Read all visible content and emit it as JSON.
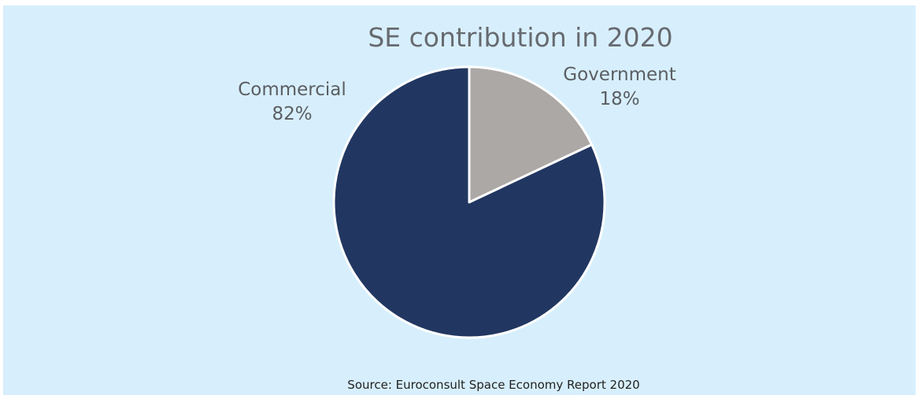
{
  "chart_data": {
    "type": "pie",
    "title": "SE contribution in 2020",
    "slices": [
      {
        "label": "Government",
        "value": 18,
        "display": "18%",
        "color": "#aba8a6"
      },
      {
        "label": "Commercial",
        "value": 82,
        "display": "82%",
        "color": "#213761"
      }
    ],
    "start_angle_deg": 0,
    "direction": "clockwise",
    "legend": "none",
    "labels_position": "outside"
  },
  "footer": {
    "source": "Source: Euroconsult Space Economy Report 2020"
  },
  "colors": {
    "background": "#d7effc",
    "slice_border": "#ffffff"
  }
}
